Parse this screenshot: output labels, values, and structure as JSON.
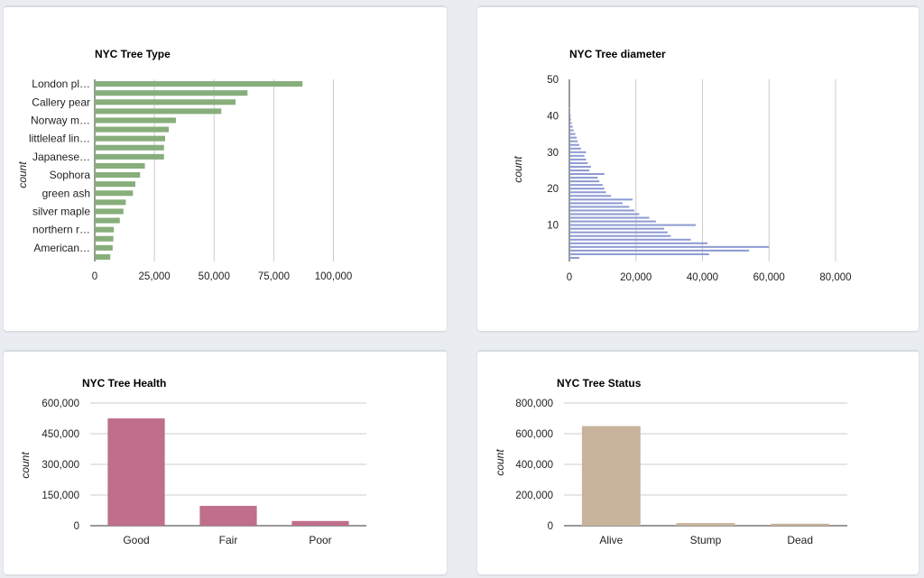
{
  "chart_data": [
    {
      "type": "bar",
      "orientation": "horizontal",
      "title": "NYC Tree Type",
      "ylabel": "count",
      "xlabel": "",
      "xlim": [
        0,
        110000
      ],
      "xticks": [
        "0",
        "25,000",
        "50,000",
        "75,000",
        "100,000"
      ],
      "xtick_values": [
        0,
        25000,
        50000,
        75000,
        100000
      ],
      "grid": true,
      "color": "#87ae7b",
      "categories": [
        "London pl…",
        "",
        "Callery pear",
        "",
        "Norway m…",
        "",
        "littleleaf lin…",
        "",
        "Japanese…",
        "",
        "Sophora",
        "",
        "green ash",
        "",
        "silver maple",
        "",
        "northern r…",
        "",
        "American…",
        ""
      ],
      "values": [
        87000,
        64000,
        59000,
        53000,
        34000,
        31000,
        29500,
        29000,
        29000,
        21000,
        19000,
        17000,
        16000,
        13000,
        12000,
        10500,
        8000,
        7800,
        7500,
        6500
      ]
    },
    {
      "type": "bar",
      "orientation": "horizontal",
      "title": "NYC Tree diameter",
      "ylabel": "count",
      "xlabel": "",
      "xlim": [
        0,
        80000
      ],
      "ylim": [
        0,
        50
      ],
      "xticks": [
        "0",
        "20,000",
        "40,000",
        "60,000",
        "80,000"
      ],
      "xtick_values": [
        0,
        20000,
        40000,
        60000,
        80000
      ],
      "yticks": [
        "10",
        "20",
        "30",
        "40",
        "50"
      ],
      "ytick_values": [
        10,
        20,
        30,
        40,
        50
      ],
      "grid": true,
      "color": "#8d9ad2",
      "diameters": [
        1,
        2,
        3,
        4,
        5,
        6,
        7,
        8,
        9,
        10,
        11,
        12,
        13,
        14,
        15,
        16,
        17,
        18,
        19,
        20,
        21,
        22,
        23,
        24,
        25,
        26,
        27,
        28,
        29,
        30,
        31,
        32,
        33,
        34,
        35,
        36,
        37,
        38,
        39,
        40,
        41,
        42
      ],
      "values": [
        3000,
        42000,
        54000,
        60000,
        41500,
        36500,
        30500,
        29500,
        28500,
        38000,
        26000,
        24000,
        21000,
        19500,
        18000,
        16000,
        19000,
        12500,
        11000,
        10500,
        10000,
        9000,
        8500,
        10500,
        6000,
        6500,
        5500,
        5000,
        4500,
        5000,
        3500,
        3000,
        2500,
        2200,
        1800,
        1300,
        1000,
        700,
        500,
        400,
        250,
        150
      ]
    },
    {
      "type": "bar",
      "title": "NYC Tree Health",
      "ylabel": "count",
      "xlabel": "",
      "ylim": [
        0,
        600000
      ],
      "yticks": [
        "0",
        "150,000",
        "300,000",
        "450,000",
        "600,000"
      ],
      "ytick_values": [
        0,
        150000,
        300000,
        450000,
        600000
      ],
      "grid": true,
      "color": "#bf6e8c",
      "categories": [
        "Good",
        "Fair",
        "Poor"
      ],
      "values": [
        525000,
        97000,
        23000
      ]
    },
    {
      "type": "bar",
      "title": "NYC Tree Status",
      "ylabel": "count",
      "xlabel": "",
      "ylim": [
        0,
        800000
      ],
      "yticks": [
        "0",
        "200,000",
        "400,000",
        "600,000",
        "800,000"
      ],
      "ytick_values": [
        0,
        200000,
        400000,
        600000,
        800000
      ],
      "grid": true,
      "color": "#c8b39c",
      "categories": [
        "Alive",
        "Stump",
        "Dead"
      ],
      "values": [
        650000,
        17000,
        13000
      ]
    }
  ]
}
